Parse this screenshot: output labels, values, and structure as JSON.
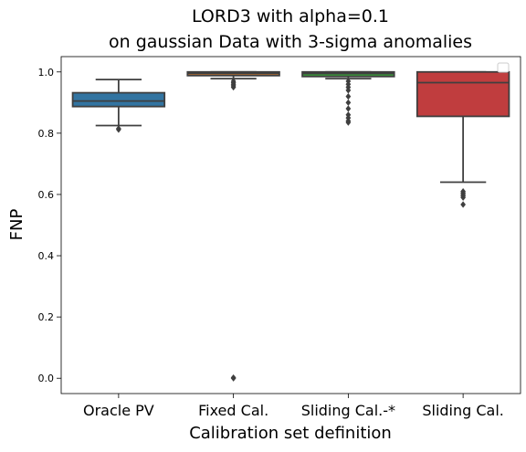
{
  "chart_data": {
    "type": "box",
    "title_line1": "LORD3 with alpha=0.1",
    "title_line2": "on gaussian Data with 3-sigma anomalies",
    "xlabel": "Calibration set definition",
    "ylabel": "FNP",
    "ylim": [
      -0.05,
      1.05
    ],
    "yticks": [
      "0.0",
      "0.2",
      "0.4",
      "0.6",
      "0.8",
      "1.0"
    ],
    "ytick_values": [
      0.0,
      0.2,
      0.4,
      0.6,
      0.8,
      1.0
    ],
    "legend": "empty box, top-right",
    "grid": false,
    "categories": [
      "Oracle PV",
      "Fixed Cal.",
      "Sliding Cal.-*",
      "Sliding Cal."
    ],
    "boxes": [
      {
        "q1": 0.887,
        "median": 0.905,
        "q3": 0.932,
        "whisker_low": 0.825,
        "whisker_high": 0.975,
        "outliers": [
          0.812,
          0.815
        ],
        "color": "#3274a1"
      },
      {
        "q1": 0.988,
        "median": 0.995,
        "q3": 1.0,
        "whisker_low": 0.978,
        "whisker_high": 1.0,
        "outliers": [
          0.95,
          0.955,
          0.96,
          0.965,
          0.97,
          0.0,
          0.002
        ],
        "color": "#e1812c"
      },
      {
        "q1": 0.985,
        "median": 0.995,
        "q3": 1.0,
        "whisker_low": 0.978,
        "whisker_high": 1.0,
        "outliers": [
          0.97,
          0.96,
          0.95,
          0.94,
          0.92,
          0.9,
          0.88,
          0.86,
          0.85,
          0.84,
          0.835
        ],
        "color": "#3a923a"
      },
      {
        "q1": 0.855,
        "median": 0.965,
        "q3": 1.0,
        "whisker_low": 0.64,
        "whisker_high": 1.0,
        "outliers": [
          0.61,
          0.605,
          0.6,
          0.595,
          0.59,
          0.567
        ],
        "color": "#c03d3e"
      }
    ]
  }
}
